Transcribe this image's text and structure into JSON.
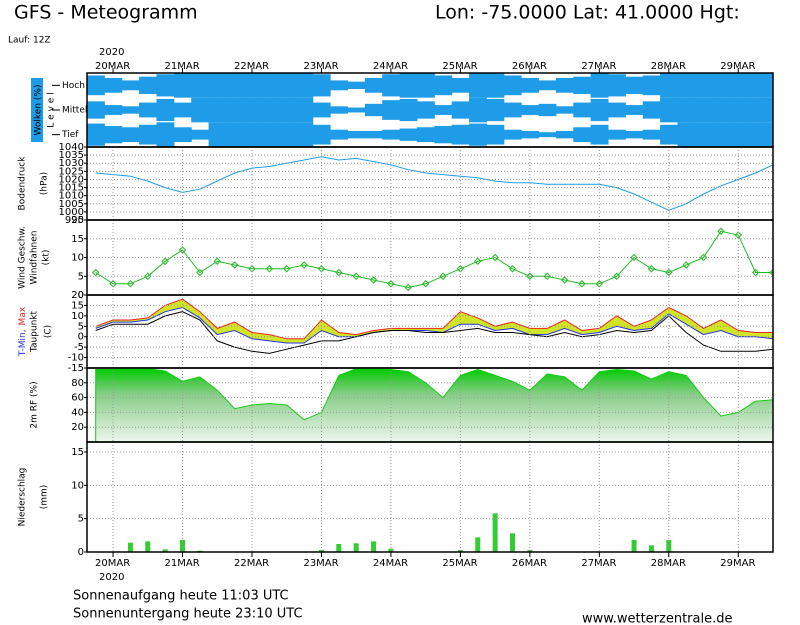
{
  "header": {
    "title": "GFS - Meteogramm",
    "location": "Lon: -75.0000 Lat: 41.0000 Hgt:",
    "run": "Lauf: 12Z"
  },
  "footer": {
    "sunrise": "Sonnenaufgang heute 11:03 UTC",
    "sunset": "Sonnenuntergang heute 23:10 UTC",
    "source": "www.wetterzentrale.de"
  },
  "time_axis": {
    "year": "2020",
    "xlim": [
      -9,
      228
    ],
    "x": [
      -6,
      0,
      6,
      12,
      18,
      24,
      30,
      36,
      42,
      48,
      54,
      60,
      66,
      72,
      78,
      84,
      90,
      96,
      102,
      108,
      114,
      120,
      126,
      132,
      138,
      144,
      150,
      156,
      162,
      168,
      174,
      180,
      186,
      192,
      198,
      204,
      210,
      216,
      222,
      228
    ],
    "xticks": [
      {
        "value": 0,
        "label": "20MAR"
      },
      {
        "value": 24,
        "label": "21MAR"
      },
      {
        "value": 48,
        "label": "22MAR"
      },
      {
        "value": 72,
        "label": "23MAR"
      },
      {
        "value": 96,
        "label": "24MAR"
      },
      {
        "value": 120,
        "label": "25MAR"
      },
      {
        "value": 144,
        "label": "26MAR"
      },
      {
        "value": 168,
        "label": "27MAR"
      },
      {
        "value": 192,
        "label": "28MAR"
      },
      {
        "value": 216,
        "label": "29MAR"
      }
    ]
  },
  "chart_data": [
    {
      "type": "cloud",
      "ylabel": "Wolken (%)",
      "level_label": "L e v e l",
      "color": "#1e9ce8",
      "series": [
        {
          "name": "Hoch",
          "values": [
            80,
            60,
            40,
            70,
            90,
            100,
            100,
            100,
            100,
            100,
            100,
            100,
            100,
            90,
            40,
            30,
            60,
            90,
            100,
            100,
            80,
            60,
            100,
            100,
            80,
            60,
            40,
            60,
            70,
            100,
            90,
            70,
            80,
            100,
            100,
            100,
            100,
            100,
            100,
            100
          ]
        },
        {
          "name": "Mittel",
          "values": [
            70,
            40,
            30,
            60,
            90,
            60,
            100,
            100,
            100,
            100,
            100,
            100,
            100,
            60,
            30,
            20,
            50,
            80,
            90,
            70,
            40,
            70,
            100,
            90,
            60,
            40,
            50,
            30,
            60,
            90,
            60,
            40,
            70,
            100,
            100,
            100,
            100,
            100,
            100,
            100
          ]
        },
        {
          "name": "Tief",
          "values": [
            90,
            70,
            60,
            80,
            100,
            60,
            40,
            100,
            100,
            100,
            100,
            100,
            100,
            80,
            40,
            30,
            30,
            40,
            50,
            60,
            70,
            80,
            90,
            80,
            40,
            30,
            20,
            30,
            60,
            80,
            40,
            30,
            40,
            80,
            100,
            100,
            100,
            100,
            100,
            100
          ]
        }
      ]
    },
    {
      "type": "line",
      "ylabel": "Bodendruck",
      "yunit": "(hPa)",
      "color": "#1e9ce8",
      "grid": true,
      "ylim": [
        995,
        1040
      ],
      "yticks": [
        995,
        1000,
        1005,
        1010,
        1015,
        1020,
        1025,
        1030,
        1035,
        1040
      ],
      "values": [
        1024,
        1023,
        1022,
        1019,
        1015,
        1012,
        1014,
        1019,
        1024,
        1027,
        1028,
        1030,
        1032,
        1034,
        1032,
        1033,
        1031,
        1029,
        1026,
        1024,
        1023,
        1022,
        1021,
        1019,
        1018,
        1018,
        1017,
        1017,
        1017,
        1017,
        1015,
        1011,
        1006,
        1001,
        1005,
        1011,
        1016,
        1020,
        1024,
        1029
      ]
    },
    {
      "type": "line-markers",
      "ylabel_lines": [
        "Wind Geschw.",
        "Windfahnen",
        "(kt)"
      ],
      "color": "#22bb22",
      "grid": true,
      "ylim": [
        0,
        20
      ],
      "yticks": [
        0,
        5,
        10,
        15,
        20
      ],
      "values": [
        6,
        3,
        3,
        5,
        9,
        12,
        6,
        9,
        8,
        7,
        7,
        7,
        8,
        7,
        6,
        5,
        4,
        3,
        2,
        3,
        5,
        7,
        9,
        10,
        7,
        5,
        5,
        4,
        3,
        3,
        5,
        10,
        7,
        6,
        8,
        10,
        17,
        16,
        6,
        6
      ]
    },
    {
      "type": "band-lines",
      "ylabel": "(C)",
      "fill_color": "#c8e000",
      "grid": true,
      "ylim": [
        -15,
        20
      ],
      "yticks": [
        -15,
        -10,
        -5,
        0,
        5,
        10,
        15,
        20
      ],
      "series": [
        {
          "name": "T-Min,",
          "color": "#2233ee",
          "values": [
            4,
            7,
            7,
            8,
            12,
            14,
            9,
            1,
            3,
            -1,
            -2,
            -3,
            -3,
            3,
            0,
            0,
            2,
            3,
            3,
            3,
            2,
            6,
            6,
            3,
            4,
            1,
            1,
            4,
            1,
            2,
            5,
            3,
            4,
            11,
            6,
            1,
            3,
            0,
            0,
            -1
          ]
        },
        {
          "name": "Max",
          "color": "#ee2222",
          "values": [
            5,
            8,
            8,
            9,
            15,
            18,
            12,
            4,
            7,
            2,
            1,
            -1,
            -1,
            8,
            2,
            1,
            3,
            4,
            4,
            4,
            4,
            12,
            9,
            5,
            7,
            4,
            4,
            8,
            3,
            4,
            10,
            5,
            8,
            14,
            10,
            4,
            8,
            3,
            2,
            2
          ]
        },
        {
          "name": "Taupunkt",
          "color": "#000000",
          "values": [
            3,
            6,
            6,
            6,
            10,
            12,
            8,
            -2,
            -5,
            -7,
            -8,
            -6,
            -4,
            -2,
            -2,
            0,
            2,
            3,
            3,
            2,
            2,
            3,
            4,
            2,
            2,
            1,
            0,
            2,
            0,
            1,
            3,
            2,
            3,
            10,
            2,
            -4,
            -7,
            -7,
            -7,
            -6
          ]
        }
      ]
    },
    {
      "type": "area",
      "ylabel": "2m RF (%)",
      "color": "#11cc11",
      "grid": true,
      "ylim": [
        0,
        100
      ],
      "yticks": [
        20,
        40,
        60,
        80
      ],
      "values": [
        98,
        98,
        99,
        99,
        96,
        82,
        88,
        70,
        45,
        50,
        52,
        50,
        30,
        40,
        90,
        99,
        99,
        98,
        95,
        80,
        60,
        90,
        98,
        90,
        82,
        70,
        92,
        88,
        70,
        95,
        98,
        96,
        85,
        95,
        90,
        60,
        35,
        40,
        55,
        57
      ]
    },
    {
      "type": "bar",
      "ylabel": "Niederschlag",
      "yunit": "(mm)",
      "color": "#33cc33",
      "grid": true,
      "ylim": [
        0,
        16.5
      ],
      "yticks": [
        0,
        5,
        10,
        15
      ],
      "values": [
        0,
        0,
        1.4,
        1.6,
        0.4,
        1.8,
        0.2,
        0,
        0,
        0,
        0,
        0,
        0,
        0.3,
        1.2,
        1.3,
        1.6,
        0.5,
        0,
        0,
        0,
        0.3,
        2.2,
        5.8,
        2.8,
        0.3,
        0,
        0,
        0,
        0,
        0,
        1.8,
        1.0,
        1.8,
        0,
        0,
        0,
        0,
        0,
        0
      ]
    }
  ]
}
